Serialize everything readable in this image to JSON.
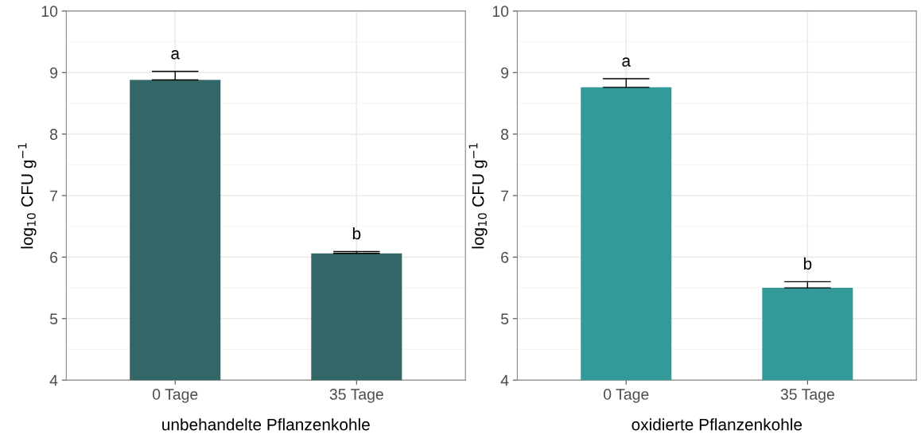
{
  "chart_data": [
    {
      "type": "bar",
      "categories": [
        "0 Tage",
        "35 Tage"
      ],
      "values": [
        8.88,
        6.06
      ],
      "color": "#336666",
      "errors": [
        [
          8.88,
          9.02
        ],
        [
          6.06,
          6.09
        ]
      ],
      "xlabel": "unbehandelte Pflanzenkohle",
      "ylabel": "log$_{10}$ CFU g$^{−1}$",
      "ylim": [
        4,
        10
      ],
      "yticks": [
        4,
        5,
        6,
        7,
        8,
        9,
        10
      ],
      "grid": true,
      "annotations": [
        {
          "text": "a",
          "x": "0 Tage",
          "y": 9.02
        },
        {
          "text": "b",
          "x": "35 Tage",
          "y": 6.09
        }
      ]
    },
    {
      "type": "bar",
      "categories": [
        "0 Tage",
        "35 Tage"
      ],
      "values": [
        8.76,
        5.5
      ],
      "color": "#339999",
      "errors": [
        [
          8.76,
          8.9
        ],
        [
          5.5,
          5.6
        ]
      ],
      "xlabel": "oxidierte Pflanzenkohle",
      "ylabel": "log$_{10}$ CFU g$^{−1}$",
      "ylim": [
        4,
        10
      ],
      "yticks": [
        4,
        5,
        6,
        7,
        8,
        9,
        10
      ],
      "grid": true,
      "annotations": [
        {
          "text": "a",
          "x": "0 Tage",
          "y": 8.9
        },
        {
          "text": "b",
          "x": "35 Tage",
          "y": 5.6
        }
      ]
    }
  ]
}
